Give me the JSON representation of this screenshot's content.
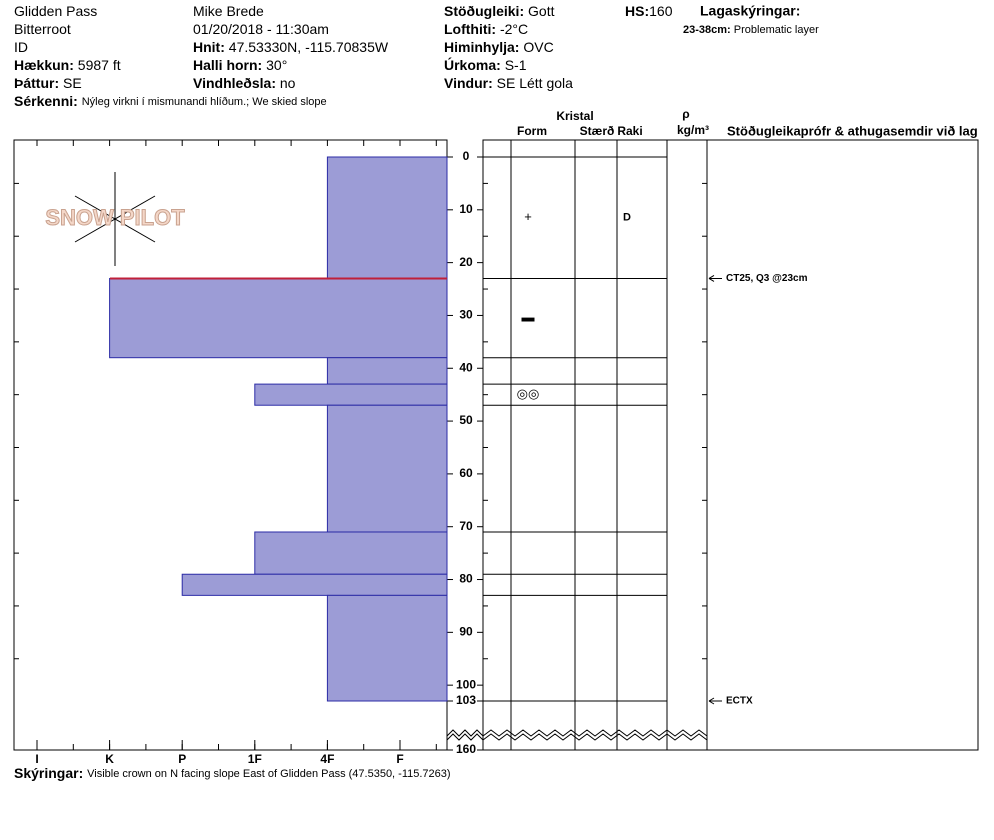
{
  "header": {
    "col1": [
      {
        "text": "Glidden Pass"
      },
      {
        "text": "Bitterroot"
      },
      {
        "text": "ID"
      },
      {
        "label": "Hækkun:",
        "value": "5987 ft"
      },
      {
        "label": "Þáttur:",
        "value": "SE"
      }
    ],
    "col2": [
      {
        "text": "Mike Brede"
      },
      {
        "text": "01/20/2018 - 11:30am"
      },
      {
        "label": "Hnit:",
        "value": "47.53330N, -115.70835W"
      },
      {
        "label": "Halli horn:",
        "value": "30°"
      },
      {
        "label": "Vindhleðsla:",
        "value": "no"
      }
    ],
    "col3": [
      {
        "label": "Stöðugleiki:",
        "value": "Gott"
      },
      {
        "label": "Lofthiti:",
        "value": "-2°C"
      },
      {
        "label": "Himinhylja:",
        "value": "OVC"
      },
      {
        "label": "Úrkoma:",
        "value": "S-1"
      },
      {
        "label": "Vindur:",
        "value": "SE Létt gola"
      }
    ],
    "hs": {
      "label": "HS:",
      "value": "160"
    },
    "legend": {
      "title": "Lagaskýringar:",
      "range": "23-38cm:",
      "text": "Problematic layer"
    },
    "features": {
      "label": "Sérkenni:",
      "value": "Nýleg virkni í mismunandi hlíðum.; We skied slope"
    }
  },
  "logo": "SNOW PILOT",
  "columns": {
    "crystal": "Kristal",
    "form": "Form",
    "size": "Stærð",
    "moisture": "Raki",
    "rho": "ρ",
    "density_unit": "kg/m³",
    "tests": "Stöðugleikaprófr & athugasemdir við lag"
  },
  "hardness_ticks": [
    "I",
    "K",
    "P",
    "1F",
    "4F",
    "F"
  ],
  "depth_ticks": [
    0,
    10,
    20,
    30,
    40,
    50,
    60,
    70,
    80,
    90,
    100,
    103,
    160
  ],
  "layers": [
    {
      "top": 0,
      "bottom": 23,
      "hardness": "4F",
      "form": "+",
      "moisture": "D"
    },
    {
      "top": 23,
      "bottom": 38,
      "hardness": "K",
      "form": "▬"
    },
    {
      "top": 38,
      "bottom": 43,
      "hardness": "4F"
    },
    {
      "top": 43,
      "bottom": 47,
      "hardness": "1F",
      "form": "◎◎"
    },
    {
      "top": 47,
      "bottom": 71,
      "hardness": "4F"
    },
    {
      "top": 71,
      "bottom": 79,
      "hardness": "1F"
    },
    {
      "top": 79,
      "bottom": 83,
      "hardness": "P"
    },
    {
      "top": 83,
      "bottom": 103,
      "hardness": "4F"
    }
  ],
  "concern_depth": 23,
  "tests": [
    {
      "depth": 23,
      "text": "CT25, Q3 @23cm"
    },
    {
      "depth": 103,
      "text": "ECTX"
    }
  ],
  "footer": {
    "label": "Skýringar:",
    "value": "Visible crown on N facing slope East of Glidden Pass (47.5350, -115.7263)"
  }
}
